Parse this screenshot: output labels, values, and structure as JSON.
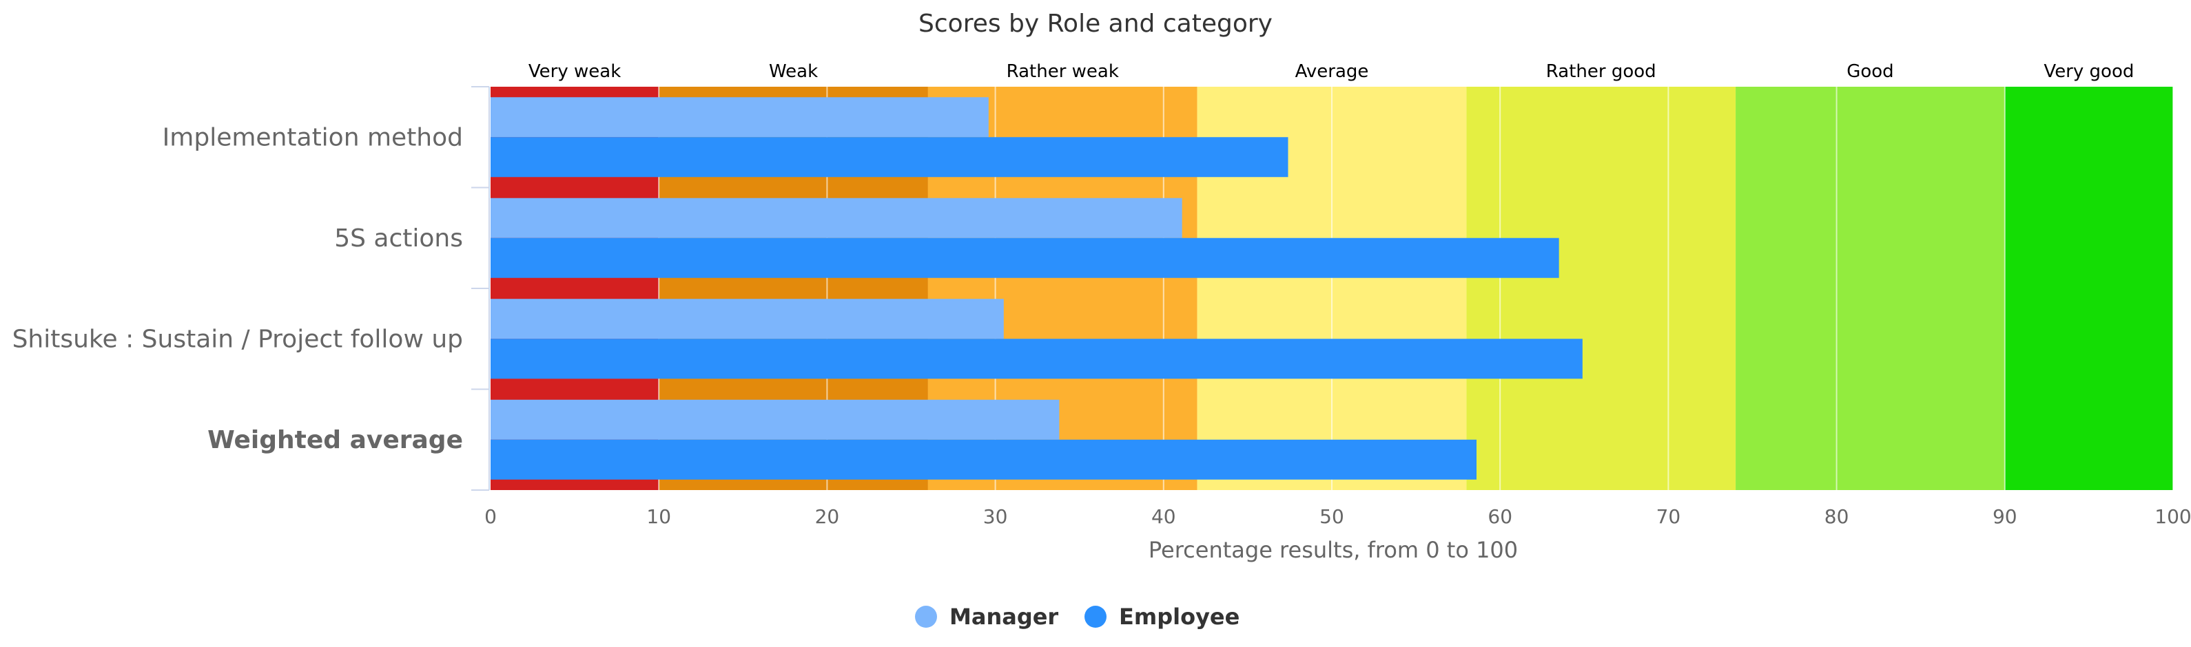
{
  "chart_data": {
    "type": "bar",
    "orientation": "horizontal",
    "title": "Scores by Role and category",
    "xlabel": "Percentage results, from 0 to 100",
    "ylabel": "",
    "xlim": [
      0,
      100
    ],
    "x_ticks": [
      0,
      10,
      20,
      30,
      40,
      50,
      60,
      70,
      80,
      90,
      100
    ],
    "grid": true,
    "legend": "bottom-center",
    "categories": [
      "Implementation method",
      "5S actions",
      "Shitsuke : Sustain / Project follow up",
      "Weighted average"
    ],
    "bold_categories": [
      "Weighted average"
    ],
    "series": [
      {
        "name": "Manager",
        "color": "#7cb5fc",
        "values": [
          29.6,
          41.1,
          30.5,
          33.8
        ]
      },
      {
        "name": "Employee",
        "color": "#2b90fd",
        "values": [
          47.4,
          63.5,
          64.9,
          58.6
        ]
      }
    ],
    "bands": [
      {
        "label": "Very weak",
        "from": 0,
        "to": 10,
        "color": "#d42020"
      },
      {
        "label": "Weak",
        "from": 10,
        "to": 26,
        "color": "#e38a0c"
      },
      {
        "label": "Rather weak",
        "from": 26,
        "to": 42,
        "color": "#fdb130"
      },
      {
        "label": "Average",
        "from": 42,
        "to": 58,
        "color": "#fff07a"
      },
      {
        "label": "Rather good",
        "from": 58,
        "to": 74,
        "color": "#e4ef42"
      },
      {
        "label": "Good",
        "from": 74,
        "to": 90,
        "color": "#92ec3e"
      },
      {
        "label": "Very good",
        "from": 90,
        "to": 100,
        "color": "#14dd04"
      }
    ]
  }
}
